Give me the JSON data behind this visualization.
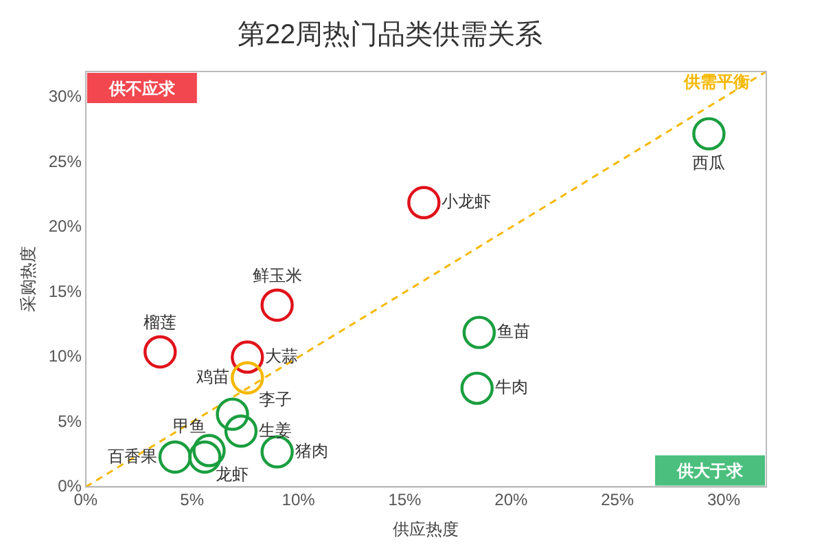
{
  "chart_data": {
    "type": "scatter",
    "title": "第22周热门品类供需关系",
    "xlabel": "供应热度",
    "ylabel": "采购热度",
    "xlim": [
      0,
      32
    ],
    "ylim": [
      0,
      32
    ],
    "xticks": [
      {
        "value": 0,
        "label": "0%"
      },
      {
        "value": 5,
        "label": "5%"
      },
      {
        "value": 10,
        "label": "10%"
      },
      {
        "value": 15,
        "label": "15%"
      },
      {
        "value": 20,
        "label": "20%"
      },
      {
        "value": 25,
        "label": "25%"
      },
      {
        "value": 30,
        "label": "30%"
      }
    ],
    "yticks": [
      {
        "value": 0,
        "label": "0%"
      },
      {
        "value": 5,
        "label": "5%"
      },
      {
        "value": 10,
        "label": "10%"
      },
      {
        "value": 15,
        "label": "15%"
      },
      {
        "value": 20,
        "label": "20%"
      },
      {
        "value": 25,
        "label": "25%"
      },
      {
        "value": 30,
        "label": "30%"
      }
    ],
    "grid": false,
    "legend": false,
    "series": [
      {
        "marker": "circle",
        "x": [
          29.3,
          15.9,
          9.0,
          3.5,
          7.6,
          7.6,
          18.5,
          18.4,
          6.9,
          7.3,
          9.0,
          5.8,
          5.6,
          4.2
        ],
        "values": [
          27.2,
          21.9,
          14.0,
          10.4,
          10.0,
          8.4,
          11.9,
          7.6,
          5.6,
          4.3,
          2.7,
          2.8,
          2.3,
          2.3
        ],
        "colors": [
          "#1a9e3f",
          "#e0121b",
          "#e0121b",
          "#e0121b",
          "#e0121b",
          "#f5b800",
          "#1a9e3f",
          "#1a9e3f",
          "#1a9e3f",
          "#1a9e3f",
          "#1a9e3f",
          "#1a9e3f",
          "#1a9e3f",
          "#1a9e3f"
        ],
        "value_labels": [
          "西瓜",
          "小龙虾",
          "鲜玉米",
          "榴莲",
          "大蒜",
          "鸡苗",
          "鱼苗",
          "牛肉",
          "李子",
          "生姜",
          "猪肉",
          "甲鱼",
          "龙虾",
          "百香果"
        ]
      },
      {
        "type": "line",
        "marker": "none",
        "name": "供需平衡",
        "color": "#f5b800",
        "line_style": "dashed",
        "x": [
          0,
          32
        ],
        "values": [
          0,
          32
        ]
      }
    ],
    "annotations": [
      "供不应求",
      "供大于求"
    ]
  }
}
